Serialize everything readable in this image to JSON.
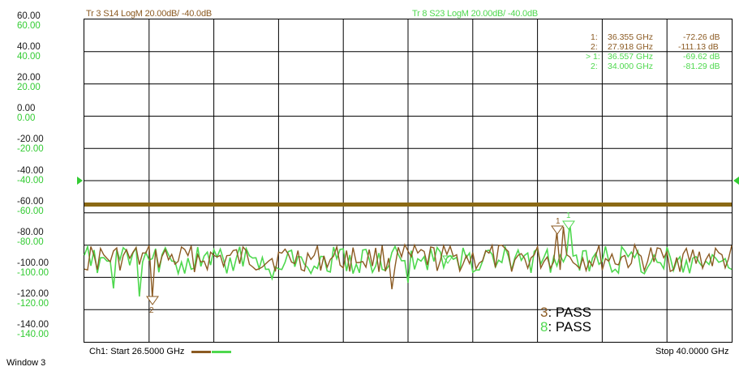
{
  "window": {
    "label": "Window 3"
  },
  "traces": {
    "tr3": {
      "title": "Tr  3  S14 LogM 20.00dB/  -40.0dB",
      "color": "#8b5a22"
    },
    "tr8": {
      "title": "Tr  8  S23 LogM 20.00dB/  -40.0dB",
      "color": "#4ed84e"
    }
  },
  "axis": {
    "brown_labels": [
      "60.00",
      "40.00",
      "20.00",
      "0.00",
      "-20.00",
      "-40.00",
      "-60.00",
      "-80.00",
      "-100.00",
      "-120.00",
      "-140.00"
    ],
    "green_labels": [
      "60.00",
      "40.00",
      "20.00",
      "0.00",
      "-20.00",
      "-40.00",
      "-60.00",
      "-80.00",
      "-100.00",
      "-120.00",
      "-140.00"
    ]
  },
  "markers": {
    "tr3": [
      {
        "id": "1:",
        "freq": "36.355 GHz",
        "value": "-72.26 dB"
      },
      {
        "id": "2:",
        "freq": "27.918 GHz",
        "value": "-111.13 dB"
      }
    ],
    "tr8": [
      {
        "id": "> 1:",
        "freq": "36.557 GHz",
        "value": "-69.62 dB"
      },
      {
        "id": "2:",
        "freq": "34.000 GHz",
        "value": "-81.29 dB"
      }
    ]
  },
  "pass_results": [
    {
      "num": "3",
      "text": ": PASS",
      "color": "#8b5a22"
    },
    {
      "num": "8",
      "text": ": PASS",
      "color": "#4ed84e"
    }
  ],
  "footer": {
    "start_label": "Ch1:  Start  26.5000 GHz",
    "stop_label": "Stop  40.0000 GHz"
  },
  "plot_markers": {
    "marker1_label": "1",
    "marker2_label": "2",
    "marker_m_label": "1"
  },
  "limit_line": {
    "level": "-60 dB",
    "color": "#8b6914"
  }
}
